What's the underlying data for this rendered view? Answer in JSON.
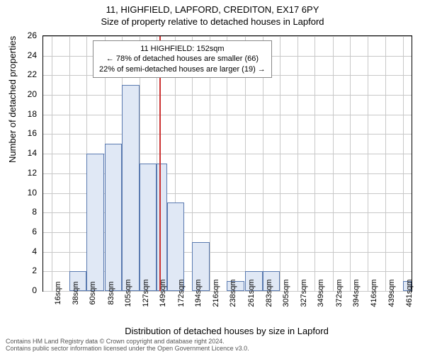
{
  "title": "11, HIGHFIELD, LAPFORD, CREDITON, EX17 6PY",
  "subtitle": "Size of property relative to detached houses in Lapford",
  "ylabel": "Number of detached properties",
  "xlabel": "Distribution of detached houses by size in Lapford",
  "annotation": {
    "line1": "11 HIGHFIELD: 152sqm",
    "line2": "← 78% of detached houses are smaller (66)",
    "line3": "22% of semi-detached houses are larger (19) →"
  },
  "chart": {
    "type": "histogram",
    "ylim": [
      0,
      26
    ],
    "yticks": [
      0,
      2,
      4,
      6,
      8,
      10,
      12,
      14,
      16,
      18,
      20,
      22,
      24,
      26
    ],
    "xlim": [
      5,
      472
    ],
    "xticks": [
      16,
      38,
      60,
      83,
      105,
      127,
      149,
      172,
      194,
      216,
      238,
      261,
      283,
      305,
      327,
      349,
      372,
      394,
      416,
      439,
      461
    ],
    "xtick_suffix": "sqm",
    "marker_value": 152,
    "marker_color": "#cc3333",
    "bar_fill": "#e0e8f5",
    "bar_stroke": "#5a7ab0",
    "grid_color": "#c8c8c8",
    "background_color": "#ffffff",
    "bars": [
      {
        "x": 38,
        "w": 22,
        "h": 2
      },
      {
        "x": 60,
        "w": 22,
        "h": 14
      },
      {
        "x": 83,
        "w": 22,
        "h": 15
      },
      {
        "x": 105,
        "w": 22,
        "h": 21
      },
      {
        "x": 127,
        "w": 22,
        "h": 13
      },
      {
        "x": 149,
        "w": 13,
        "h": 13
      },
      {
        "x": 162,
        "w": 22,
        "h": 9
      },
      {
        "x": 194,
        "w": 22,
        "h": 5
      },
      {
        "x": 238,
        "w": 22,
        "h": 1
      },
      {
        "x": 261,
        "w": 22,
        "h": 2
      },
      {
        "x": 283,
        "w": 22,
        "h": 2
      },
      {
        "x": 461,
        "w": 11,
        "h": 1
      }
    ],
    "title_fontsize": 13,
    "label_fontsize": 13,
    "tick_fontsize": 12
  },
  "footer": {
    "line1": "Contains HM Land Registry data © Crown copyright and database right 2024.",
    "line2": "Contains public sector information licensed under the Open Government Licence v3.0."
  }
}
